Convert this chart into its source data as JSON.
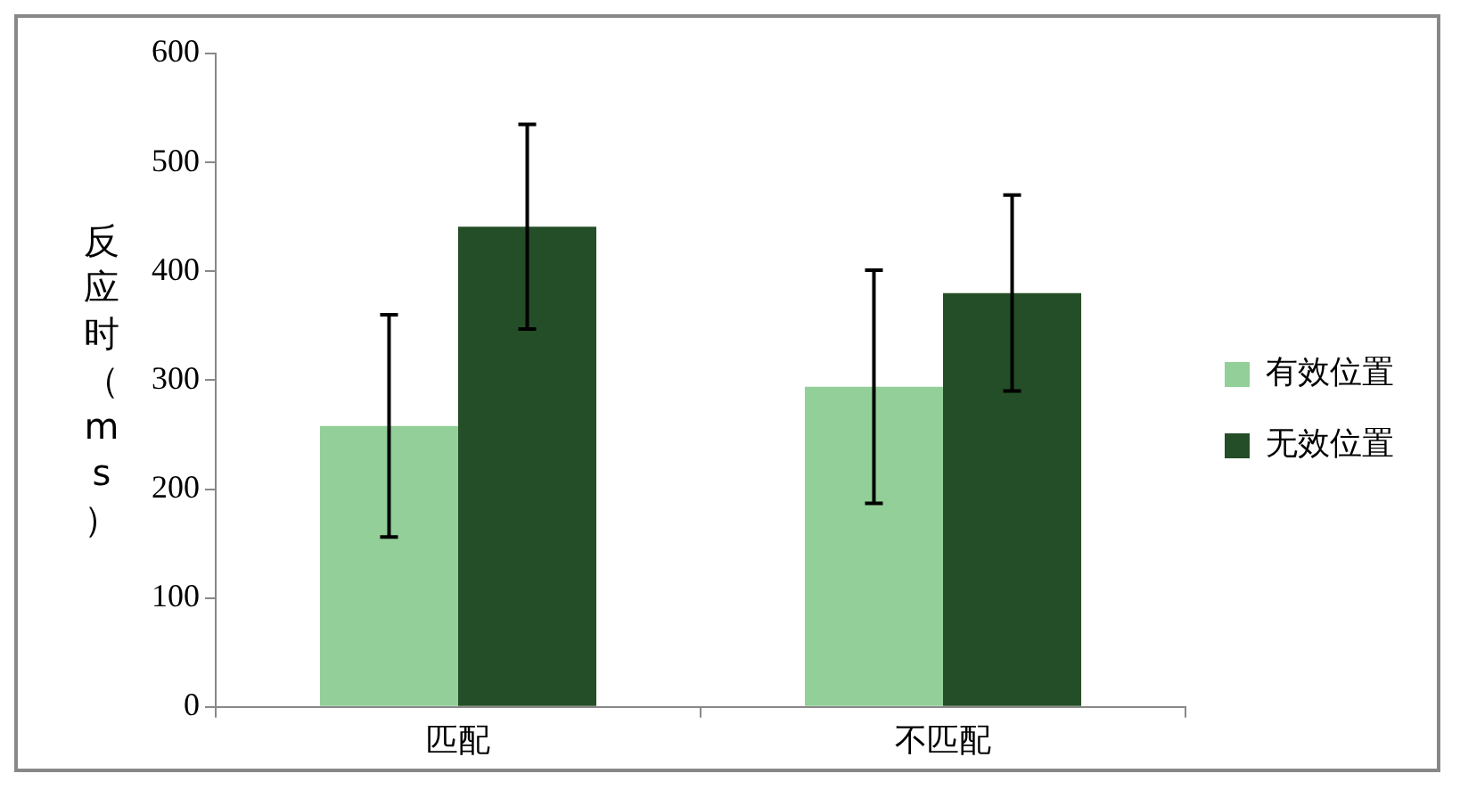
{
  "chart_data": {
    "type": "bar",
    "ylabel": "反应时（ms）",
    "categories": [
      "匹配",
      "不匹配"
    ],
    "series": [
      {
        "name": "有效位置",
        "color": "#93cf98",
        "values": [
          258,
          294
        ],
        "errors": [
          102,
          107
        ]
      },
      {
        "name": "无效位置",
        "color": "#244e27",
        "values": [
          441,
          380
        ],
        "errors": [
          94,
          90
        ]
      }
    ],
    "ylim": [
      0,
      600
    ],
    "yticks": [
      0,
      100,
      200,
      300,
      400,
      500,
      600
    ],
    "grid": false,
    "legend": "right"
  }
}
